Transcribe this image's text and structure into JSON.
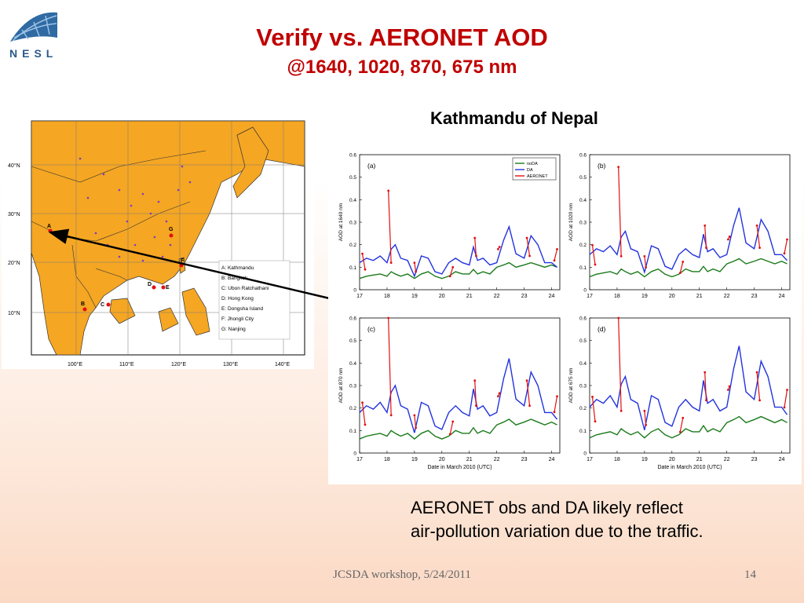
{
  "logo": {
    "text": "NESL",
    "icon": "globe-grid-icon"
  },
  "title": {
    "line1": "Verify vs. AERONET AOD",
    "line2": "@1640, 1020, 870, 675 nm"
  },
  "map": {
    "lat_labels": [
      "40°N",
      "30°N",
      "20°N",
      "10°N"
    ],
    "lon_labels": [
      "100°E",
      "110°E",
      "120°E",
      "130°E",
      "140°E"
    ],
    "site_markers": [
      "A",
      "B",
      "C",
      "D",
      "E",
      "F",
      "G"
    ],
    "legend": [
      "A: Kathmandu",
      "B: Bangkok",
      "C: Ubon Ratchathani",
      "D: Hong Kong",
      "E: Dongsha Island",
      "F: Jhongli City",
      "G: Nanjing"
    ],
    "colors": {
      "land": "#f5a623",
      "sea": "#ffffff",
      "site": "#e01010",
      "station": "#7a3cc0"
    }
  },
  "plots_title": "Kathmandu of Nepal",
  "chart_data": {
    "type": "line",
    "x_ticks": [
      "17",
      "18",
      "19",
      "20",
      "21",
      "22",
      "23",
      "24"
    ],
    "xlabel": "Date in March 2010 (UTC)",
    "ylim": [
      0,
      0.6
    ],
    "y_ticks": [
      "0",
      "0.1",
      "0.2",
      "0.3",
      "0.4",
      "0.5",
      "0.6"
    ],
    "legend": [
      "noDA",
      "DA",
      "AERONET"
    ],
    "colors": {
      "noDA": "#1a7a1a",
      "DA": "#2233dd",
      "AERONET": "#e01010"
    },
    "panels": [
      {
        "label": "(a)",
        "ylabel": "AOD at 1640 nm"
      },
      {
        "label": "(b)",
        "ylabel": "AOD at 1020 nm"
      },
      {
        "label": "(c)",
        "ylabel": "AOD at 870 nm"
      },
      {
        "label": "(d)",
        "ylabel": "AOD at 675 nm"
      }
    ],
    "x": [
      17,
      17.25,
      17.5,
      17.75,
      18,
      18.15,
      18.3,
      18.5,
      18.75,
      19,
      19.25,
      19.5,
      19.75,
      20,
      20.25,
      20.5,
      20.75,
      21,
      21.15,
      21.3,
      21.5,
      21.75,
      22,
      22.25,
      22.45,
      22.7,
      23,
      23.25,
      23.5,
      23.75,
      24,
      24.2
    ],
    "series": [
      {
        "name": "noDA",
        "values": [
          0.05,
          0.06,
          0.065,
          0.07,
          0.06,
          0.08,
          0.07,
          0.06,
          0.07,
          0.05,
          0.07,
          0.08,
          0.06,
          0.05,
          0.06,
          0.08,
          0.07,
          0.07,
          0.09,
          0.07,
          0.08,
          0.07,
          0.1,
          0.11,
          0.12,
          0.1,
          0.11,
          0.12,
          0.11,
          0.1,
          0.11,
          0.1
        ]
      },
      {
        "name": "DA",
        "values": [
          0.12,
          0.14,
          0.13,
          0.15,
          0.12,
          0.18,
          0.2,
          0.14,
          0.13,
          0.06,
          0.15,
          0.14,
          0.08,
          0.07,
          0.12,
          0.14,
          0.12,
          0.11,
          0.19,
          0.13,
          0.14,
          0.11,
          0.12,
          0.22,
          0.28,
          0.16,
          0.14,
          0.24,
          0.2,
          0.12,
          0.12,
          0.1
        ]
      }
    ],
    "aeronet_segments": [
      [
        [
          17.1,
          0.16
        ],
        [
          17.2,
          0.09
        ]
      ],
      [
        [
          18.05,
          0.44
        ],
        [
          18.15,
          0.12
        ]
      ],
      [
        [
          19.0,
          0.12
        ],
        [
          19.05,
          0.08
        ]
      ],
      [
        [
          20.3,
          0.06
        ],
        [
          20.4,
          0.1
        ]
      ],
      [
        [
          21.2,
          0.23
        ],
        [
          21.25,
          0.15
        ]
      ],
      [
        [
          22.05,
          0.18
        ],
        [
          22.1,
          0.19
        ]
      ],
      [
        [
          23.1,
          0.23
        ],
        [
          23.2,
          0.15
        ]
      ],
      [
        [
          24.1,
          0.13
        ],
        [
          24.2,
          0.18
        ]
      ]
    ]
  },
  "caption": {
    "line1": "AERONET obs and DA likely reflect",
    "line2": "air-pollution variation due to the traffic."
  },
  "footer": {
    "text": "JCSDA workshop, 5/24/2011",
    "page": "14"
  }
}
